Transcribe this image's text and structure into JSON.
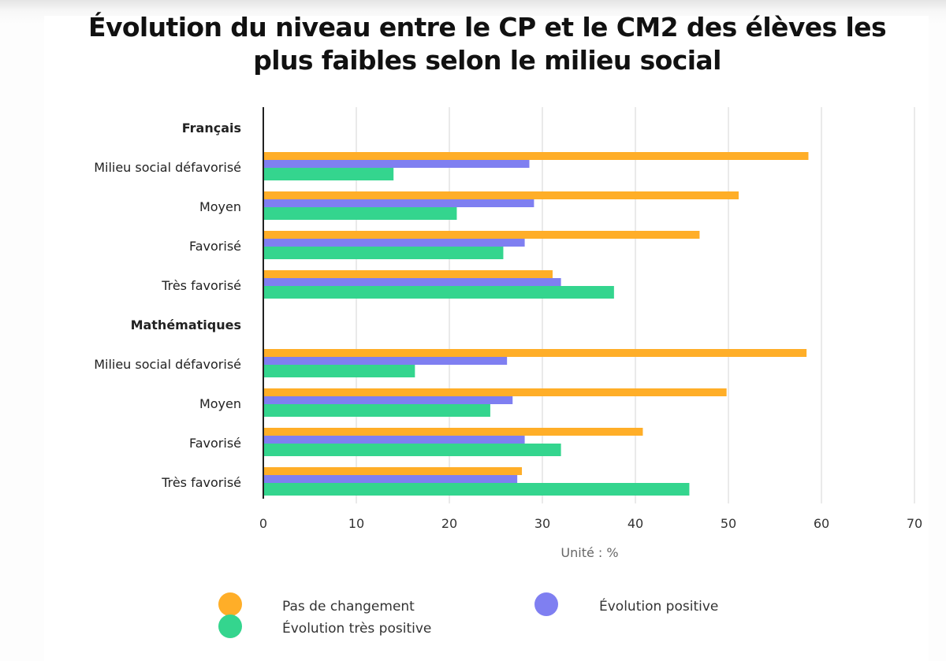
{
  "chart_data": {
    "type": "bar",
    "orientation": "horizontal",
    "title": "Évolution du niveau entre le CP et le CM2 des élèves les plus faibles selon le milieu social",
    "xlabel": "Unité : %",
    "ylabel": "",
    "xlim": [
      0,
      70
    ],
    "xticks": [
      0,
      10,
      20,
      30,
      40,
      50,
      60,
      70
    ],
    "grid": true,
    "legend_position": "bottom",
    "groups": [
      {
        "label": "Français",
        "categories": [
          "Milieu social défavorisé",
          "Moyen",
          "Favorisé",
          "Très favorisé"
        ]
      },
      {
        "label": "Mathématiques",
        "categories": [
          "Milieu social défavorisé",
          "Moyen",
          "Favorisé",
          "Très favorisé"
        ]
      }
    ],
    "series": [
      {
        "name": "Pas de changement",
        "color": "#ffae28",
        "values": [
          [
            58.6,
            51.1,
            46.9,
            31.1
          ],
          [
            58.4,
            49.8,
            40.8,
            27.8
          ]
        ]
      },
      {
        "name": "Évolution positive",
        "color": "#7f7ff1",
        "values": [
          [
            28.6,
            29.1,
            28.1,
            32.0
          ],
          [
            26.2,
            26.8,
            28.1,
            27.3
          ]
        ]
      },
      {
        "name": "Évolution très positive",
        "color": "#34d58e",
        "values": [
          [
            14.0,
            20.8,
            25.8,
            37.7
          ],
          [
            16.3,
            24.4,
            32.0,
            45.8
          ]
        ]
      }
    ]
  }
}
